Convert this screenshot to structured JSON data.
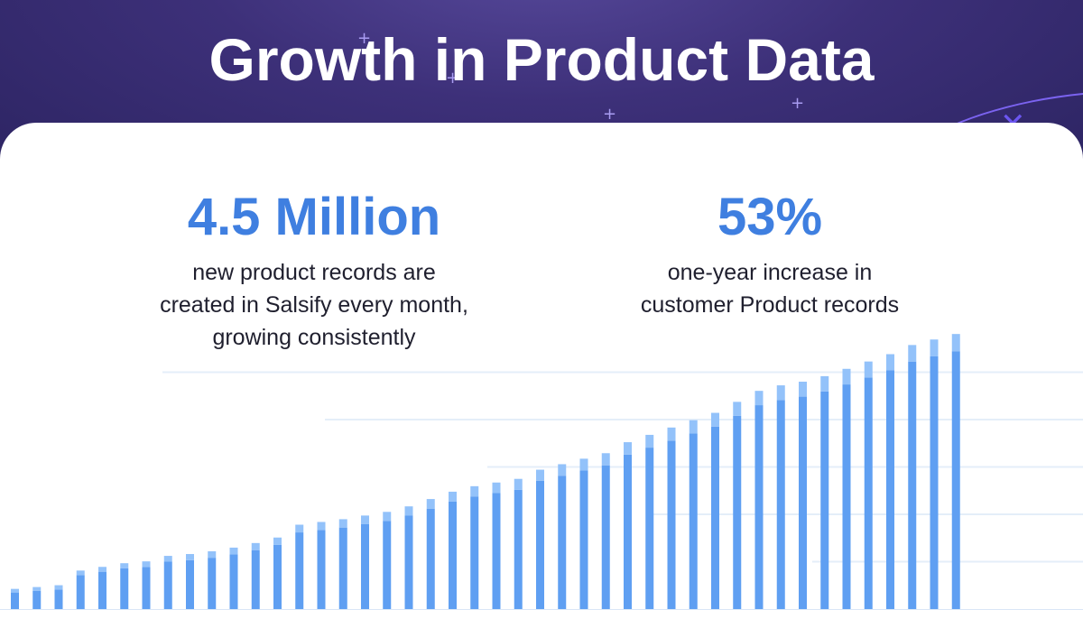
{
  "title": "Growth in Product Data",
  "stats": [
    {
      "value": "4.5 Million",
      "lines": [
        "new product records are",
        "created in Salsify every month,",
        "growing consistently"
      ]
    },
    {
      "value": "53%",
      "lines": [
        "one-year increase in",
        "customer Product records"
      ]
    }
  ],
  "colors": {
    "banner": "#3d3079",
    "accent": "#3f7fe0",
    "bar_dark": "#5f9ff2",
    "bar_light": "#93c2fa"
  },
  "chart_data": {
    "type": "bar",
    "title": "",
    "xlabel": "",
    "ylabel": "",
    "grid": true,
    "ylim": [
      0,
      310
    ],
    "values": [
      22,
      24,
      26,
      42,
      46,
      50,
      52,
      58,
      60,
      63,
      67,
      72,
      78,
      92,
      95,
      98,
      102,
      106,
      112,
      120,
      128,
      134,
      138,
      142,
      152,
      158,
      164,
      170,
      182,
      190,
      198,
      206,
      214,
      226,
      238,
      244,
      248,
      254,
      262,
      270,
      278,
      288,
      294,
      300
    ]
  }
}
